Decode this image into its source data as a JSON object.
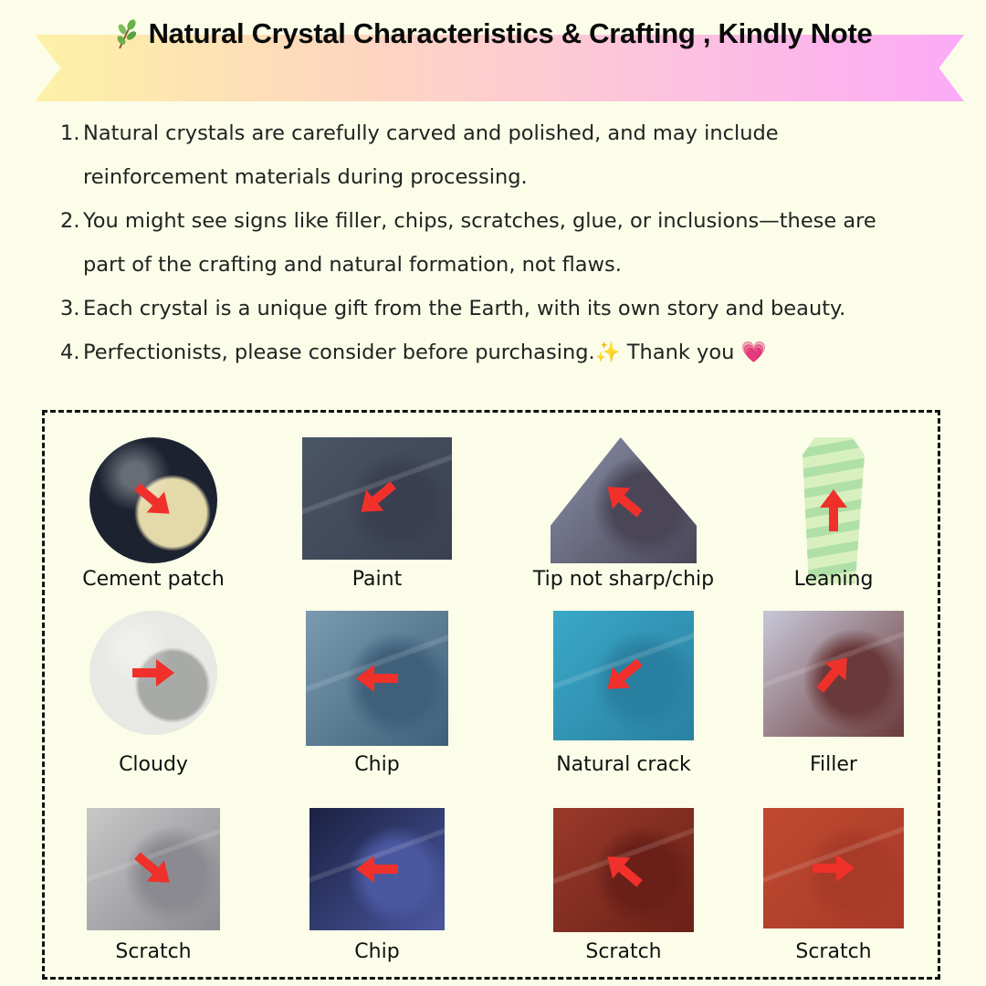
{
  "banner": {
    "title": "Natural Crystal Characteristics & Crafting , Kindly Note",
    "icon": "leaf-sprig-icon",
    "gradient": [
      "#fdf1a6",
      "#fbaaf6"
    ]
  },
  "notes": [
    {
      "num": "1.",
      "lines": [
        "Natural crystals are carefully carved and polished, and may include",
        "reinforcement materials during processing."
      ]
    },
    {
      "num": "2.",
      "lines": [
        "You might see signs like filler, chips, scratches, glue, or inclusions—these are",
        "part of the crafting and natural formation, not flaws."
      ]
    },
    {
      "num": "3.",
      "lines": [
        "Each crystal is a unique gift from the Earth, with its own story and beauty."
      ]
    },
    {
      "num": "4.",
      "lines": [
        "Perfectionists, please consider before purchasing.✨  Thank you 💗"
      ]
    }
  ],
  "arrow_color": "#f0302a",
  "examples": [
    {
      "label": "Cement patch",
      "shape": "circle",
      "colors": [
        "#1c2230",
        "#e4d9a8"
      ],
      "arrow": "down-right"
    },
    {
      "label": "Paint",
      "shape": "rect",
      "colors": [
        "#4a5566",
        "#3a4050"
      ],
      "arrow": "down-left"
    },
    {
      "label": "Tip not sharp/chip",
      "shape": "pyramid",
      "colors": [
        "#8a90a8",
        "#4a4658"
      ],
      "arrow": "up-left"
    },
    {
      "label": "Leaning",
      "shape": "tower",
      "colors": [
        "#d8f0c0",
        "#b0e0a8"
      ],
      "arrow": "up"
    },
    {
      "label": "Cloudy",
      "shape": "circle",
      "colors": [
        "#e8e8e4",
        "#a8aaa8"
      ],
      "arrow": "right"
    },
    {
      "label": "Chip",
      "shape": "rect",
      "colors": [
        "#7a9ab0",
        "#40607a"
      ],
      "arrow": "left"
    },
    {
      "label": "Natural crack",
      "shape": "rect",
      "colors": [
        "#3aa8c8",
        "#2a80a0"
      ],
      "arrow": "down-left"
    },
    {
      "label": "Filler",
      "shape": "rect",
      "colors": [
        "#c8c8d8",
        "#6a3a3a"
      ],
      "arrow": "up-right"
    },
    {
      "label": "Scratch",
      "shape": "rect",
      "colors": [
        "#c8c8c8",
        "#8a8a90"
      ],
      "arrow": "down-right"
    },
    {
      "label": "Chip",
      "shape": "rect",
      "colors": [
        "#1a2040",
        "#4a58a0"
      ],
      "arrow": "left"
    },
    {
      "label": "Scratch",
      "shape": "rect",
      "colors": [
        "#9a3a2a",
        "#6a2018"
      ],
      "arrow": "up-left"
    },
    {
      "label": "Scratch",
      "shape": "rect",
      "colors": [
        "#c04a30",
        "#a83a28"
      ],
      "arrow": "right"
    }
  ]
}
